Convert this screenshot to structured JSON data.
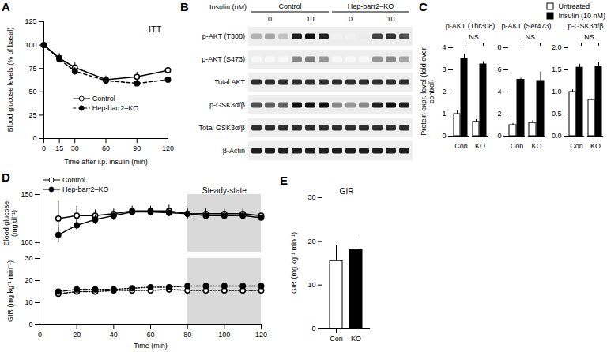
{
  "chart_data": [
    {
      "panel": "A",
      "type": "line",
      "title": "ITT",
      "x": [
        0,
        15,
        30,
        60,
        90,
        120
      ],
      "series": [
        {
          "name": "Control",
          "color": "#ffffff",
          "marker": "open circle",
          "line_style": "solid",
          "values": [
            100,
            86,
            76,
            63,
            66,
            73
          ],
          "errors": [
            0,
            5,
            5,
            4,
            5,
            7
          ]
        },
        {
          "name": "Hep-barr2–KO",
          "color": "#000000",
          "marker": "filled circle",
          "line_style": "dashed",
          "values": [
            100,
            85,
            72,
            62,
            59,
            63
          ],
          "errors": [
            0,
            4,
            4,
            3,
            3,
            4
          ]
        }
      ],
      "xlabel": "Time after i.p. insulin (min)",
      "ylabel": "Blood glucose levels (% of basal)",
      "xlim": [
        0,
        120
      ],
      "xticks": [
        0,
        15,
        30,
        60,
        90,
        120
      ],
      "ylim": [
        0,
        125
      ],
      "yticks": [
        0,
        25,
        50,
        75,
        100,
        125
      ],
      "legend": "lower center"
    },
    {
      "panel": "C",
      "type": "bar",
      "title": "p-AKT (Thr308)",
      "categories": [
        "Con",
        "KO"
      ],
      "series": [
        {
          "name": "Untreated",
          "color": "#ffffff",
          "values": [
            1.0,
            0.65
          ],
          "errors": [
            0.15,
            0.1
          ]
        },
        {
          "name": "Insulin (10 nM)",
          "color": "#000000",
          "values": [
            3.5,
            3.25
          ],
          "errors": [
            0.2,
            0.12
          ]
        }
      ],
      "ylabel": "Protein expr. level (fold over control)",
      "ylim": [
        0,
        4
      ],
      "yticks": [
        0,
        1,
        2,
        3,
        4
      ],
      "annotations": [
        "NS"
      ]
    },
    {
      "type": "bar",
      "title": "p-AKT (Ser473)",
      "categories": [
        "Con",
        "KO"
      ],
      "series": [
        {
          "name": "Untreated",
          "color": "#ffffff",
          "values": [
            1.0,
            1.2
          ],
          "errors": [
            0.15,
            0.2
          ]
        },
        {
          "name": "Insulin (10 nM)",
          "color": "#000000",
          "values": [
            5.1,
            5.0
          ],
          "errors": [
            0.15,
            0.8
          ]
        }
      ],
      "ylim": [
        0,
        8
      ],
      "yticks": [
        0,
        2,
        4,
        6,
        8
      ],
      "annotations": [
        "NS"
      ]
    },
    {
      "type": "bar",
      "title": "p-GSK3α/β",
      "categories": [
        "Con",
        "KO"
      ],
      "series": [
        {
          "name": "Untreated",
          "color": "#ffffff",
          "values": [
            1.0,
            0.82
          ],
          "errors": [
            0.05,
            0.02
          ]
        },
        {
          "name": "Insulin (10 nM)",
          "color": "#000000",
          "values": [
            1.55,
            1.58
          ],
          "errors": [
            0.08,
            0.08
          ]
        }
      ],
      "ylim": [
        0,
        2
      ],
      "yticks": [
        {
          "value": 0,
          "label": "0.0"
        },
        {
          "value": 0.5,
          "label": "0.5"
        },
        {
          "value": 1,
          "label": "1.0"
        },
        {
          "value": 1.5,
          "label": "1.5"
        },
        {
          "value": 2,
          "label": "2.0"
        }
      ],
      "annotations": [
        "NS"
      ],
      "legend": "upper right"
    },
    {
      "panel": "D",
      "type": "line",
      "x": [
        10,
        20,
        30,
        40,
        50,
        60,
        70,
        80,
        90,
        100,
        110,
        120
      ],
      "series": [
        {
          "name": "Control",
          "color": "#ffffff",
          "marker": "open circle",
          "line_style": "solid",
          "values": [
            125,
            128,
            128,
            130,
            133,
            133,
            133,
            130,
            130,
            130,
            130,
            128
          ],
          "errors": [
            18,
            10,
            6,
            5,
            5,
            5,
            6,
            6,
            5,
            5,
            5,
            5
          ]
        },
        {
          "name": "Hep-barr2–KO",
          "color": "#000000",
          "marker": "filled circle",
          "line_style": "solid",
          "values": [
            108,
            118,
            124,
            128,
            132,
            132,
            131,
            130,
            128,
            128,
            128,
            126
          ],
          "errors": [
            8,
            6,
            5,
            5,
            4,
            4,
            4,
            4,
            4,
            4,
            4,
            4
          ]
        }
      ],
      "ylabel": "Blood glucose (mg dl⁻¹)",
      "xlim": [
        0,
        120
      ],
      "ylim": [
        90,
        150
      ],
      "yticks": [
        100,
        150
      ],
      "shaded": {
        "from": 80,
        "to": 120,
        "label": "Steady-state"
      },
      "tick_labels": "y",
      "legend": "upper left"
    },
    {
      "type": "line",
      "x": [
        10,
        20,
        30,
        40,
        50,
        60,
        70,
        80,
        90,
        100,
        110,
        120
      ],
      "series": [
        {
          "name": "Control",
          "color": "#ffffff",
          "marker": "open circle",
          "line_style": "dotted",
          "values": [
            14,
            15,
            15,
            15.5,
            15.5,
            15.5,
            16,
            15.5,
            15.5,
            15.5,
            15.5,
            15.5
          ],
          "errors": [
            1.5,
            1.5,
            1.5,
            1.5,
            1.5,
            1.5,
            1.5,
            1.5,
            1.5,
            1.5,
            1.5,
            1.5
          ]
        },
        {
          "name": "Hep-barr2–KO",
          "color": "#000000",
          "marker": "filled circle",
          "line_style": "dotted",
          "values": [
            15,
            16,
            16,
            16,
            16.5,
            17,
            17,
            17.5,
            17.5,
            17.5,
            17.5,
            17.5
          ],
          "errors": [
            1,
            1,
            1,
            1,
            1,
            1,
            1,
            1,
            1,
            1,
            1,
            1
          ]
        }
      ],
      "ylabel": "GIR (mg kg⁻¹ min⁻¹)",
      "xlabel": "Time (min)",
      "xlim": [
        0,
        120
      ],
      "xticks": [
        0,
        20,
        40,
        60,
        80,
        100,
        120
      ],
      "ylim": [
        0,
        30
      ],
      "yticks": [
        0,
        10,
        20,
        30
      ],
      "shaded": {
        "from": 80,
        "to": 120
      }
    },
    {
      "panel": "E",
      "type": "bar",
      "title": "GIR",
      "categories": [
        "Con",
        "KO"
      ],
      "values": [
        15.5,
        18
      ],
      "errors": [
        3.5,
        2.5
      ],
      "colors": [
        "#ffffff",
        "#000000"
      ],
      "ylabel": "GIR (mg kg⁻¹ min⁻¹)",
      "ylim": [
        0,
        30
      ],
      "yticks": [
        0,
        10,
        20,
        30
      ]
    }
  ],
  "blot": {
    "panel": "B",
    "treatment_label": "Insulin (nM)",
    "groups": [
      {
        "label": "Control",
        "doses": [
          "0",
          "10"
        ]
      },
      {
        "label": "Hep-barr2–KO",
        "doses": [
          "0",
          "10"
        ]
      }
    ],
    "rows": [
      {
        "label": "p-AKT (T308)",
        "lanes": [
          0.4,
          0.45,
          0.35,
          0.9,
          0.95,
          0.9,
          0.1,
          0.1,
          0.15,
          0.8,
          0.85,
          0.75
        ]
      },
      {
        "label": "p-AKT (S473)",
        "lanes": [
          0.05,
          0.05,
          0.05,
          0.55,
          0.6,
          0.5,
          0.05,
          0.05,
          0.05,
          0.5,
          0.55,
          0.45
        ]
      },
      {
        "label": "Total AKT",
        "lanes": [
          0.85,
          0.85,
          0.85,
          0.85,
          0.85,
          0.85,
          0.85,
          0.85,
          0.85,
          0.85,
          0.85,
          0.85
        ]
      },
      {
        "label": "p-GSK3α/β",
        "lanes": [
          0.75,
          0.7,
          0.7,
          0.95,
          0.95,
          0.95,
          0.55,
          0.5,
          0.55,
          0.9,
          0.95,
          0.9
        ]
      },
      {
        "label": "Total GSK3α/β",
        "lanes": [
          0.85,
          0.85,
          0.85,
          0.85,
          0.85,
          0.85,
          0.85,
          0.85,
          0.85,
          0.85,
          0.85,
          0.85
        ]
      },
      {
        "label": "β-Actin",
        "lanes": [
          0.9,
          0.9,
          0.9,
          0.9,
          0.9,
          0.9,
          0.9,
          0.9,
          0.9,
          0.9,
          0.9,
          0.9
        ]
      }
    ]
  }
}
